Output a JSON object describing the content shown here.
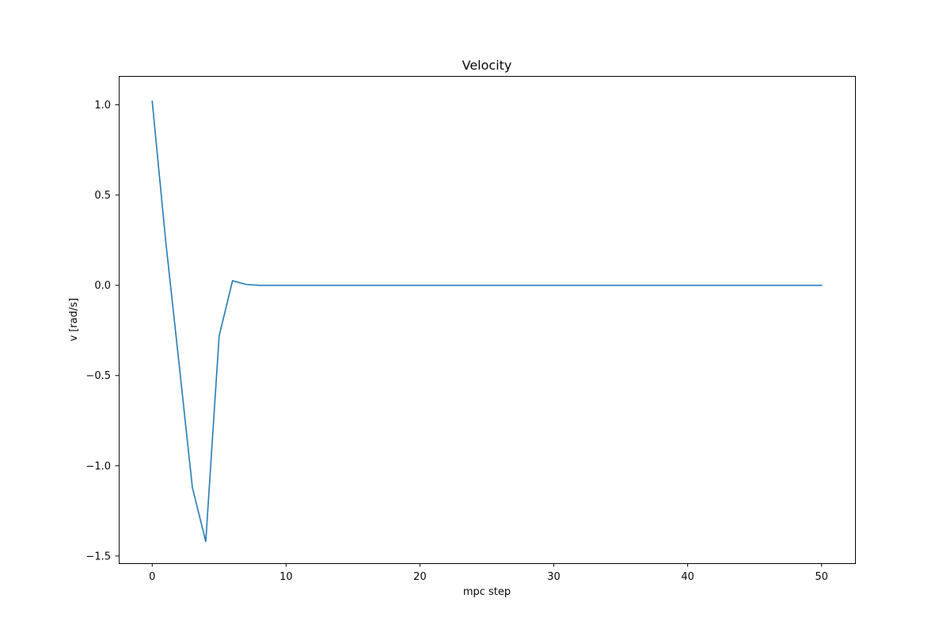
{
  "chart_data": {
    "type": "line",
    "title": "Velocity",
    "xlabel": "mpc step",
    "ylabel": "v [rad/s]",
    "xlim": [
      -2.5,
      52.5
    ],
    "ylim": [
      -1.54,
      1.16
    ],
    "xticks": [
      0,
      10,
      20,
      30,
      40,
      50
    ],
    "yticks": [
      -1.5,
      -1.0,
      -0.5,
      0.0,
      0.5,
      1.0
    ],
    "xtick_labels": [
      "0",
      "10",
      "20",
      "30",
      "40",
      "50"
    ],
    "ytick_labels": [
      "−1.5",
      "−1.0",
      "−0.5",
      "0.0",
      "0.5",
      "1.0"
    ],
    "grid": false,
    "legend": false,
    "series": [
      {
        "color": "#1f77b4",
        "x": [
          0,
          1,
          2,
          3,
          4,
          5,
          6,
          7,
          8,
          9,
          10,
          11,
          12,
          13,
          14,
          15,
          16,
          17,
          18,
          19,
          20,
          21,
          22,
          23,
          24,
          25,
          26,
          27,
          28,
          29,
          30,
          31,
          32,
          33,
          34,
          35,
          36,
          37,
          38,
          39,
          40,
          41,
          42,
          43,
          44,
          45,
          46,
          47,
          48,
          49,
          50
        ],
        "y": [
          1.02,
          0.25,
          -0.43,
          -1.12,
          -1.42,
          -0.28,
          0.025,
          0.005,
          0.0,
          0,
          0,
          0,
          0,
          0,
          0,
          0,
          0,
          0,
          0,
          0,
          0,
          0,
          0,
          0,
          0,
          0,
          0,
          0,
          0,
          0,
          0,
          0,
          0,
          0,
          0,
          0,
          0,
          0,
          0,
          0,
          0,
          0,
          0,
          0,
          0,
          0,
          0,
          0,
          0,
          0,
          0
        ]
      }
    ]
  }
}
